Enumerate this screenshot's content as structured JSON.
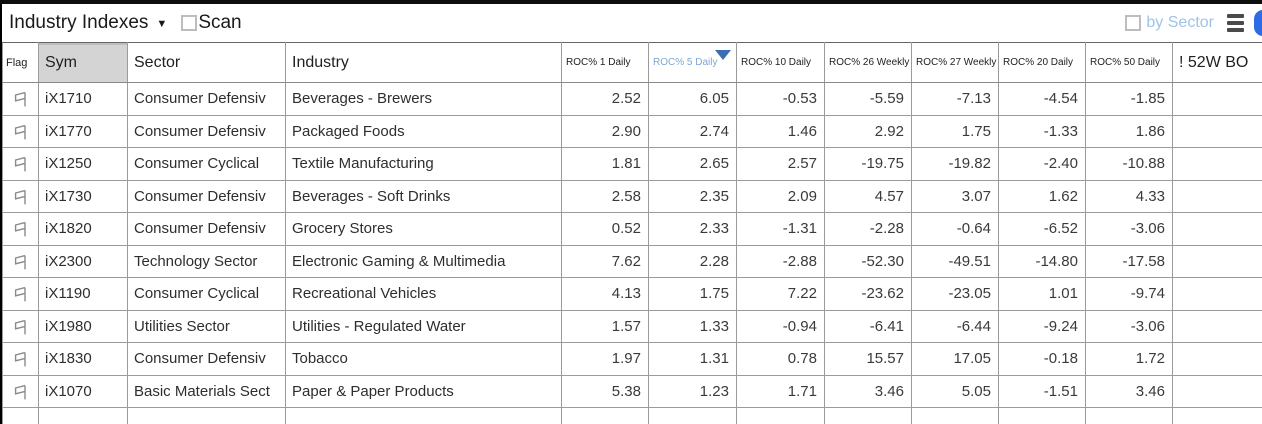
{
  "titlebar": {
    "title": "Industry Indexes",
    "scan_label": "Scan",
    "by_sector_label": "by Sector"
  },
  "icons": {
    "dropdown_arrow": "dropdown-arrow-icon",
    "flag": "flag-icon",
    "menu": "menu-icon",
    "sort_desc": "sort-desc-icon"
  },
  "colors": {
    "sort_triangle": "#3b6db3",
    "sorted_header_text": "#7da7d8",
    "by_sector_text": "#9fc3e8",
    "blue_button": "#2b6be4",
    "gridline": "#9b9b9b",
    "selected_header_bg": "#d4d4d4"
  },
  "table": {
    "sorted_column": "ROC% 5 Daily",
    "sort_direction": "desc",
    "columns": [
      {
        "label": "Flag",
        "key": "flag",
        "type": "flag"
      },
      {
        "label": "Sym",
        "key": "sym",
        "type": "text",
        "highlighted": true
      },
      {
        "label": "Sector",
        "key": "sector",
        "type": "text"
      },
      {
        "label": "Industry",
        "key": "industry",
        "type": "text"
      },
      {
        "label": "ROC% 1 Daily",
        "key": "roc1d",
        "type": "num",
        "small": true
      },
      {
        "label": "ROC% 5 Daily",
        "key": "roc5d",
        "type": "num",
        "small": true,
        "sorted": "desc"
      },
      {
        "label": "ROC% 10 Daily",
        "key": "roc10d",
        "type": "num",
        "small": true
      },
      {
        "label": "ROC% 26 Weekly",
        "key": "roc26w",
        "type": "num",
        "small": true
      },
      {
        "label": "ROC% 27 Weekly",
        "key": "roc27w",
        "type": "num",
        "small": true
      },
      {
        "label": "ROC% 20 Daily",
        "key": "roc20d",
        "type": "num",
        "small": true
      },
      {
        "label": "ROC% 50 Daily",
        "key": "roc50d",
        "type": "num",
        "small": true
      },
      {
        "label": "! 52W BO",
        "key": "bo",
        "type": "text"
      }
    ],
    "rows": [
      {
        "sym": "iX1710",
        "sector": "Consumer Defensiv",
        "industry": "Beverages - Brewers",
        "values": [
          "2.52",
          "6.05",
          "-0.53",
          "-5.59",
          "-7.13",
          "-4.54",
          "-1.85"
        ],
        "bo": ""
      },
      {
        "sym": "iX1770",
        "sector": "Consumer Defensiv",
        "industry": "Packaged Foods",
        "values": [
          "2.90",
          "2.74",
          "1.46",
          "2.92",
          "1.75",
          "-1.33",
          "1.86"
        ],
        "bo": ""
      },
      {
        "sym": "iX1250",
        "sector": "Consumer Cyclical",
        "industry": "Textile Manufacturing",
        "values": [
          "1.81",
          "2.65",
          "2.57",
          "-19.75",
          "-19.82",
          "-2.40",
          "-10.88"
        ],
        "bo": ""
      },
      {
        "sym": "iX1730",
        "sector": "Consumer Defensiv",
        "industry": "Beverages - Soft Drinks",
        "values": [
          "2.58",
          "2.35",
          "2.09",
          "4.57",
          "3.07",
          "1.62",
          "4.33"
        ],
        "bo": ""
      },
      {
        "sym": "iX1820",
        "sector": "Consumer Defensiv",
        "industry": "Grocery Stores",
        "values": [
          "0.52",
          "2.33",
          "-1.31",
          "-2.28",
          "-0.64",
          "-6.52",
          "-3.06"
        ],
        "bo": ""
      },
      {
        "sym": "iX2300",
        "sector": "Technology Sector",
        "industry": "Electronic Gaming & Multimedia",
        "values": [
          "7.62",
          "2.28",
          "-2.88",
          "-52.30",
          "-49.51",
          "-14.80",
          "-17.58"
        ],
        "bo": ""
      },
      {
        "sym": "iX1190",
        "sector": "Consumer Cyclical",
        "industry": "Recreational Vehicles",
        "values": [
          "4.13",
          "1.75",
          "7.22",
          "-23.62",
          "-23.05",
          "1.01",
          "-9.74"
        ],
        "bo": ""
      },
      {
        "sym": "iX1980",
        "sector": "Utilities Sector",
        "industry": "Utilities - Regulated Water",
        "values": [
          "1.57",
          "1.33",
          "-0.94",
          "-6.41",
          "-6.44",
          "-9.24",
          "-3.06"
        ],
        "bo": ""
      },
      {
        "sym": "iX1830",
        "sector": "Consumer Defensiv",
        "industry": "Tobacco",
        "values": [
          "1.97",
          "1.31",
          "0.78",
          "15.57",
          "17.05",
          "-0.18",
          "1.72"
        ],
        "bo": ""
      },
      {
        "sym": "iX1070",
        "sector": "Basic Materials Sect",
        "industry": "Paper & Paper Products",
        "values": [
          "5.38",
          "1.23",
          "1.71",
          "3.46",
          "5.05",
          "-1.51",
          "3.46"
        ],
        "bo": ""
      }
    ]
  }
}
